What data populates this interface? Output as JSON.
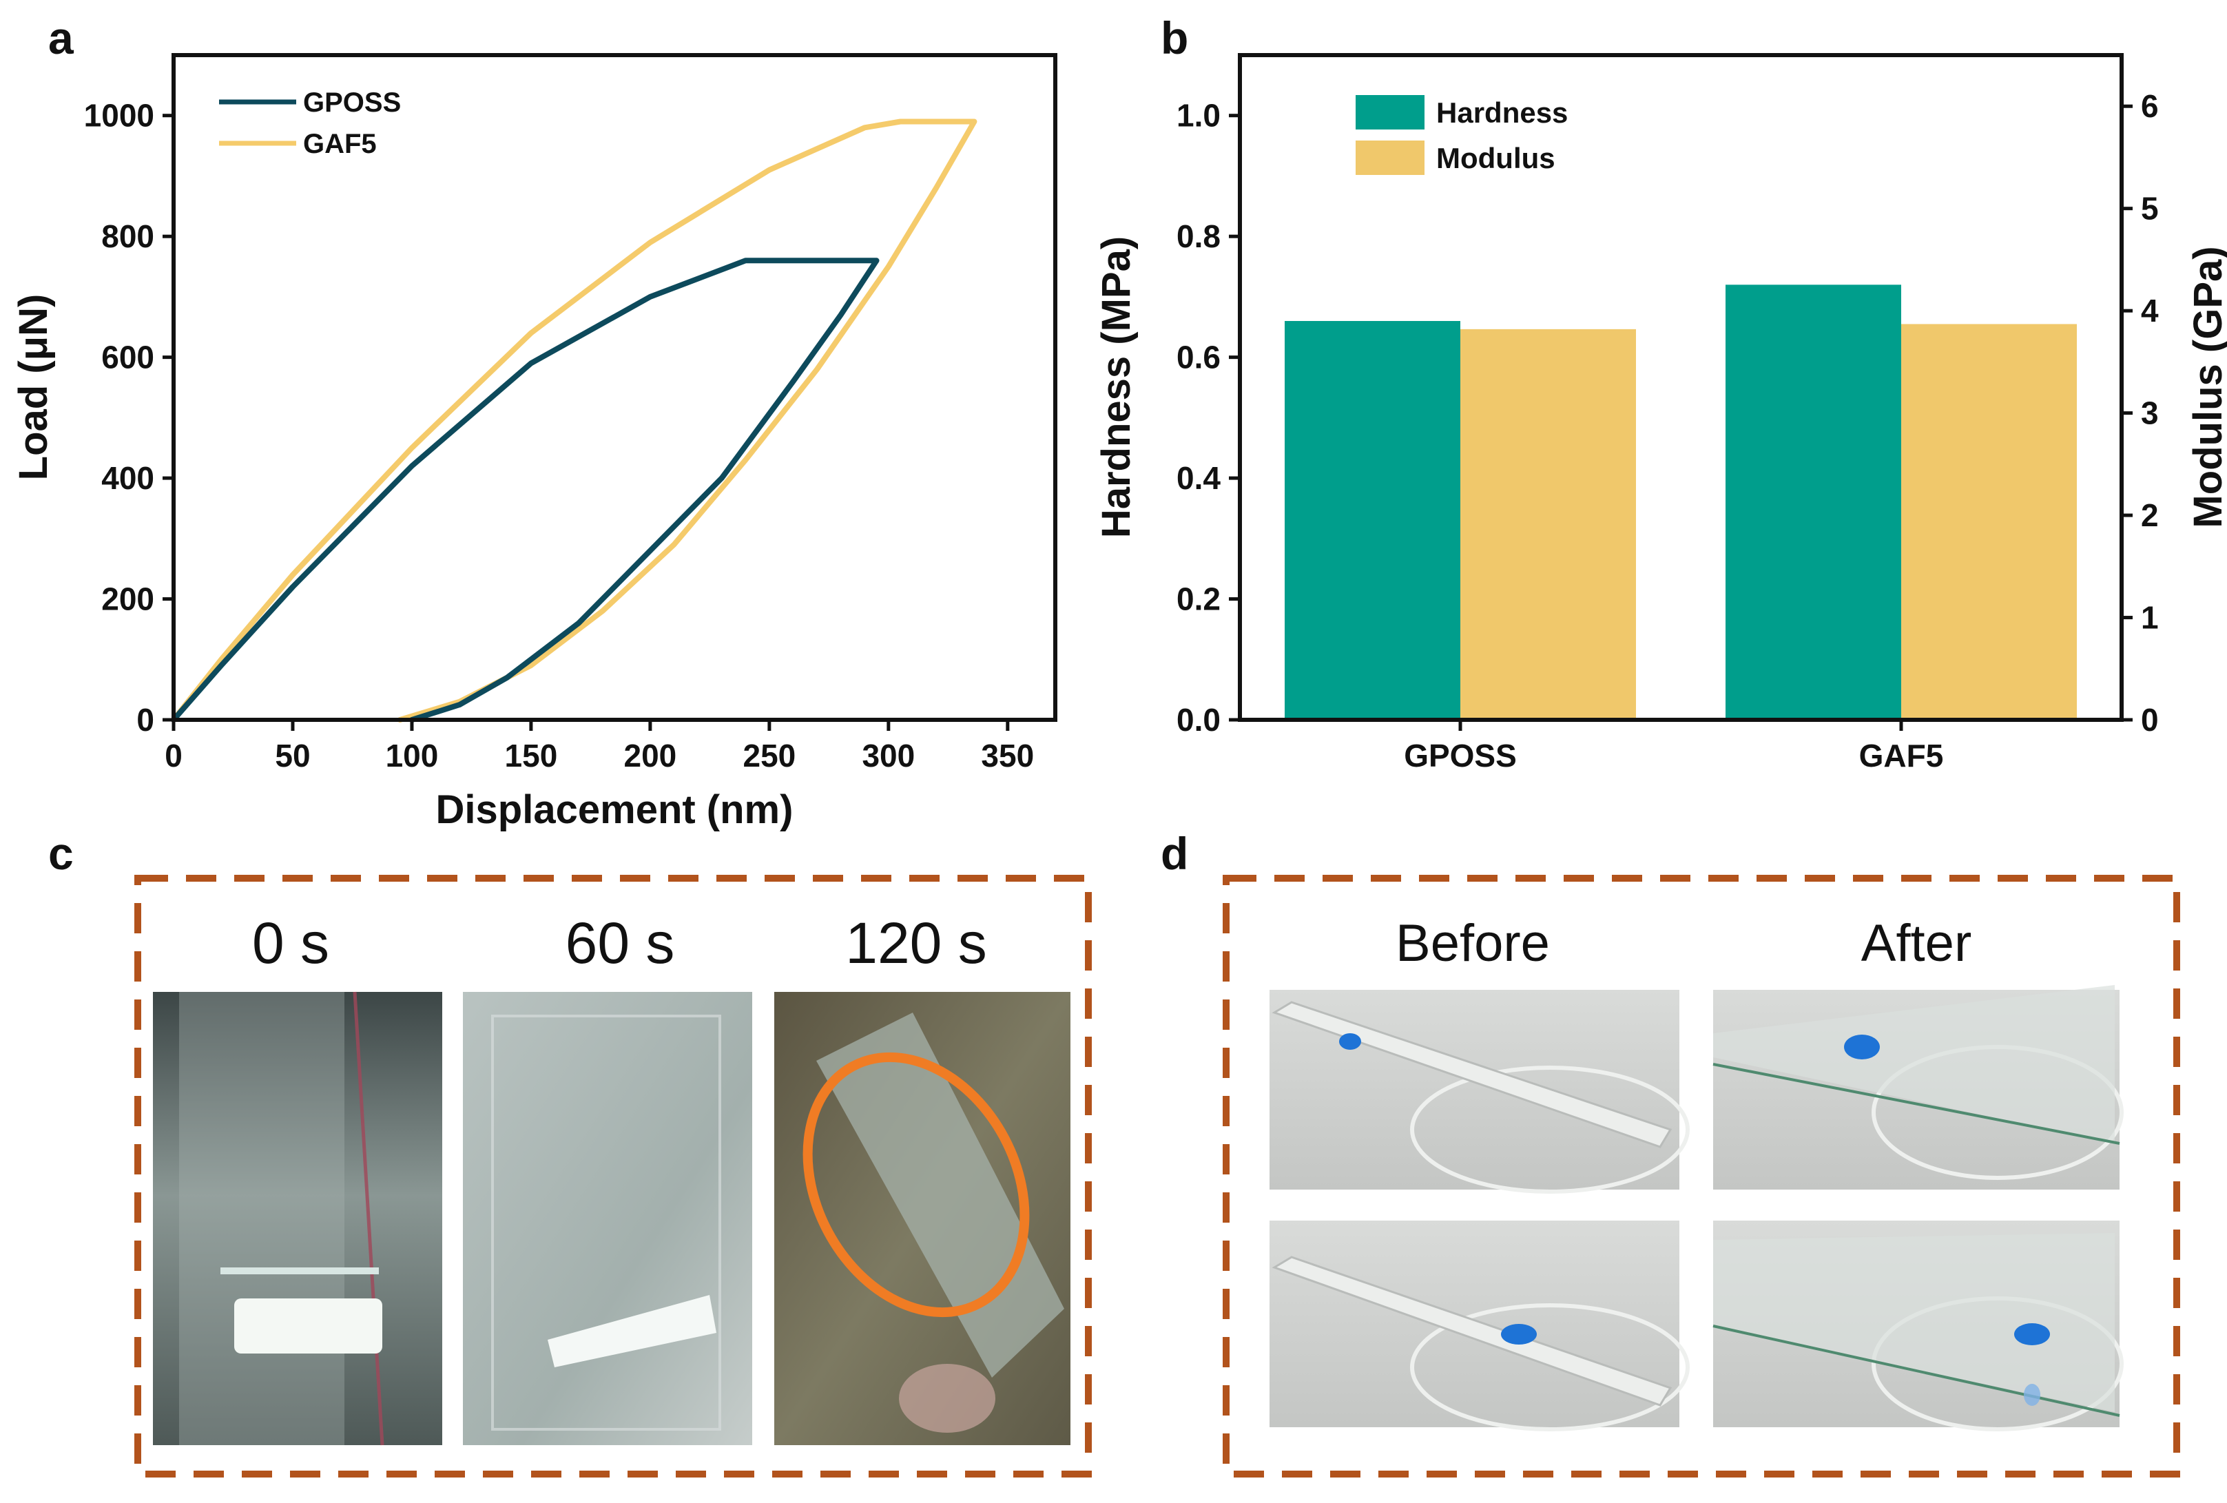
{
  "panels": {
    "a_letter": "a",
    "b_letter": "b",
    "c_letter": "c",
    "d_letter": "d"
  },
  "chart_data": [
    {
      "type": "line",
      "panel": "a",
      "xlabel": "Displacement (nm)",
      "ylabel": "Load (μN)",
      "xlim": [
        0,
        370
      ],
      "ylim": [
        0,
        1100
      ],
      "xticks": [
        0,
        50,
        100,
        150,
        200,
        250,
        300,
        350
      ],
      "yticks": [
        0,
        200,
        400,
        600,
        800,
        1000
      ],
      "legend_position": "top-left",
      "series": [
        {
          "name": "GPOSS",
          "color": "#0d4a5c",
          "x": [
            0,
            20,
            50,
            100,
            150,
            200,
            240,
            262,
            295,
            280,
            260,
            230,
            200,
            170,
            140,
            120,
            100
          ],
          "y": [
            0,
            90,
            220,
            420,
            590,
            700,
            760,
            760,
            760,
            670,
            560,
            400,
            280,
            160,
            70,
            25,
            0
          ]
        },
        {
          "name": "GAF5",
          "color": "#f5cb6b",
          "x": [
            0,
            20,
            50,
            100,
            150,
            200,
            250,
            290,
            305,
            336,
            320,
            300,
            270,
            240,
            210,
            180,
            150,
            120,
            95
          ],
          "y": [
            0,
            100,
            240,
            450,
            640,
            790,
            910,
            980,
            990,
            990,
            880,
            750,
            580,
            430,
            290,
            180,
            90,
            30,
            0
          ]
        }
      ]
    },
    {
      "type": "bar",
      "panel": "b",
      "categories": [
        "GPOSS",
        "GAF5"
      ],
      "ylabel_left": "Hardness (MPa)",
      "ylabel_right": "Modulus (GPa)",
      "ylim_left": [
        0,
        1.1
      ],
      "ylim_right": [
        0,
        6.5
      ],
      "yticks_left": [
        "0.0",
        "0.2",
        "0.4",
        "0.6",
        "0.8",
        "1.0"
      ],
      "yticks_right": [
        "0",
        "1",
        "2",
        "3",
        "4",
        "5",
        "6"
      ],
      "legend_position": "top-left",
      "series": [
        {
          "name": "Hardness",
          "axis": "left",
          "color": "#009e8c",
          "values": [
            0.66,
            0.72
          ]
        },
        {
          "name": "Modulus",
          "axis": "right",
          "color": "#f0c86b",
          "values": [
            3.82,
            3.87
          ]
        }
      ]
    }
  ],
  "panel_c": {
    "labels": [
      "0 s",
      "60 s",
      "120 s"
    ]
  },
  "panel_d": {
    "labels": [
      "Before",
      "After"
    ]
  }
}
